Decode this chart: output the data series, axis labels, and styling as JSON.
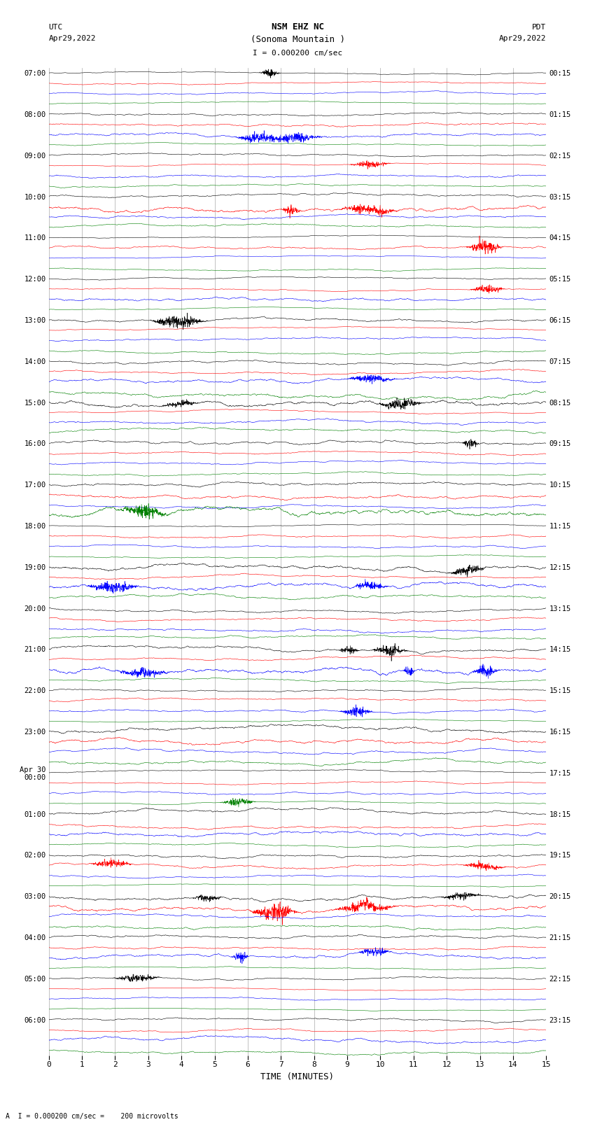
{
  "title_line1": "NSM EHZ NC",
  "title_line2": "(Sonoma Mountain )",
  "title_scale": "I = 0.000200 cm/sec",
  "left_header": "UTC",
  "left_date": "Apr29,2022",
  "right_header": "PDT",
  "right_date": "Apr29,2022",
  "xlabel": "TIME (MINUTES)",
  "footer": "A  I = 0.000200 cm/sec =    200 microvolts",
  "utc_times": [
    "07:00",
    "08:00",
    "09:00",
    "10:00",
    "11:00",
    "12:00",
    "13:00",
    "14:00",
    "15:00",
    "16:00",
    "17:00",
    "18:00",
    "19:00",
    "20:00",
    "21:00",
    "22:00",
    "23:00",
    "Apr 30\n00:00",
    "01:00",
    "02:00",
    "03:00",
    "04:00",
    "05:00",
    "06:00"
  ],
  "pdt_times": [
    "00:15",
    "01:15",
    "02:15",
    "03:15",
    "04:15",
    "05:15",
    "06:15",
    "07:15",
    "08:15",
    "09:15",
    "10:15",
    "11:15",
    "12:15",
    "13:15",
    "14:15",
    "15:15",
    "16:15",
    "17:15",
    "18:15",
    "19:15",
    "20:15",
    "21:15",
    "22:15",
    "23:15"
  ],
  "n_rows": 24,
  "traces_per_row": 4,
  "colors": [
    "black",
    "red",
    "blue",
    "green"
  ],
  "xmin": 0,
  "xmax": 15,
  "bg_color": "white",
  "grid_color": "#aaaaaa",
  "seed": 42
}
